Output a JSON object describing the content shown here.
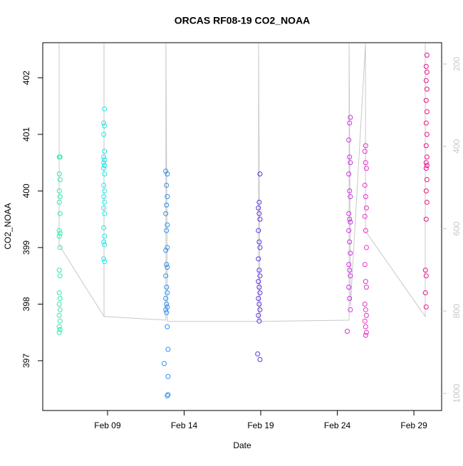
{
  "chart_data": {
    "type": "scatter",
    "title": "ORCAS RF08-19 CO2_NOAA",
    "x_label": "Date",
    "y_label": "CO2_NOAA",
    "xlim": [
      4.77,
      30.81
    ],
    "ylim": [
      396.12,
      402.62
    ],
    "y2lim": [
      1041.5,
      148.2
    ],
    "xticks": [
      {
        "value": 9,
        "label": "Feb 09"
      },
      {
        "value": 14,
        "label": "Feb 14"
      },
      {
        "value": 19,
        "label": "Feb 19"
      },
      {
        "value": 24,
        "label": "Feb 24"
      },
      {
        "value": 29,
        "label": "Feb 29"
      }
    ],
    "yticks": [
      397,
      398,
      399,
      400,
      401,
      402
    ],
    "y2ticks": [
      200,
      400,
      600,
      800,
      1000
    ],
    "y2_color": "#c8c8c8",
    "series": [
      {
        "type": "line",
        "axis": "y2",
        "color": "#c8c8c8",
        "x": [
          5.84,
          5.84,
          8.77,
          8.77,
          8.77,
          12.81,
          12.81,
          12.91,
          18.86,
          18.86,
          18.95,
          24.77,
          24.77,
          24.86,
          25.84,
          25.84,
          29.74,
          29.74
        ],
        "values": [
          150,
          640,
          813,
          150,
          813,
          822,
          150,
          825,
          825,
          150,
          825,
          822,
          150,
          787,
          150,
          606,
          813,
          150
        ]
      },
      {
        "color": "#2ee8b0",
        "x": [
          5.85,
          5.9,
          5.85,
          5.9,
          5.85,
          5.9,
          5.85,
          5.9,
          5.85,
          5.9,
          5.85,
          5.9,
          5.85,
          5.9,
          5.85,
          5.9,
          5.85,
          5.9,
          5.85,
          5.9,
          5.85,
          5.9,
          5.85
        ],
        "values": [
          400.6,
          400.6,
          400.3,
          400.2,
          400.0,
          399.9,
          399.8,
          399.6,
          399.3,
          399.25,
          399.2,
          399.0,
          398.6,
          398.5,
          398.2,
          398.1,
          398.0,
          397.9,
          397.8,
          397.7,
          397.6,
          397.55,
          397.5
        ]
      },
      {
        "color": "#1ee8e8",
        "x": [
          8.8,
          8.75,
          8.8,
          8.75,
          8.8,
          8.75,
          8.8,
          8.75,
          8.8,
          8.75,
          8.8,
          8.75,
          8.8,
          8.75,
          8.8,
          8.75,
          8.8,
          8.75,
          8.8,
          8.75,
          8.8,
          8.75,
          8.8
        ],
        "values": [
          401.45,
          401.2,
          401.15,
          401.0,
          400.7,
          400.6,
          400.55,
          400.5,
          400.45,
          400.4,
          400.3,
          400.1,
          400.0,
          399.9,
          399.8,
          399.7,
          399.6,
          399.35,
          399.2,
          399.1,
          399.05,
          398.8,
          398.75
        ]
      },
      {
        "color": "#2e8ff0",
        "x": [
          12.8,
          12.9,
          12.85,
          12.9,
          12.85,
          12.8,
          12.9,
          12.85,
          12.9,
          12.8,
          12.85,
          12.9,
          12.8,
          12.85,
          12.9,
          12.8,
          12.85,
          12.9,
          12.8,
          12.85,
          12.9,
          12.95,
          12.7,
          12.95,
          12.95,
          12.9
        ],
        "values": [
          400.35,
          400.3,
          400.1,
          399.9,
          399.75,
          399.6,
          399.4,
          399.3,
          399.0,
          398.95,
          398.7,
          398.65,
          398.5,
          398.3,
          398.2,
          398.1,
          398.0,
          397.95,
          397.9,
          397.85,
          397.6,
          397.2,
          396.95,
          396.72,
          396.4,
          396.38
        ]
      },
      {
        "color": "#5a2ee8",
        "x": [
          18.95,
          18.9,
          18.85,
          18.9,
          18.95,
          18.85,
          18.9,
          18.95,
          18.85,
          18.9,
          18.95,
          18.85,
          18.9,
          18.95,
          18.85,
          18.9,
          18.95,
          18.85,
          18.9,
          18.8,
          18.95
        ],
        "values": [
          400.3,
          399.8,
          399.7,
          399.6,
          399.5,
          399.3,
          399.1,
          399.0,
          398.8,
          398.6,
          398.5,
          398.4,
          398.3,
          398.2,
          398.1,
          398.0,
          397.9,
          397.8,
          397.7,
          397.12,
          397.02
        ]
      },
      {
        "color": "#d02ee8",
        "x": [
          24.85,
          24.8,
          24.75,
          24.8,
          24.85,
          24.75,
          24.8,
          24.85,
          24.75,
          24.8,
          24.85,
          24.75,
          24.8,
          24.85,
          24.75,
          24.8,
          24.85,
          24.75,
          24.8,
          24.85,
          24.65
        ],
        "values": [
          401.3,
          401.2,
          400.9,
          400.6,
          400.5,
          400.3,
          400.0,
          399.9,
          399.6,
          399.5,
          399.45,
          399.3,
          399.1,
          398.9,
          398.7,
          398.6,
          398.5,
          398.3,
          398.1,
          397.9,
          397.52
        ]
      },
      {
        "color": "#e82ec8",
        "x": [
          25.85,
          25.8,
          25.85,
          25.9,
          25.8,
          25.85,
          25.9,
          25.8,
          25.85,
          25.9,
          25.8,
          25.85,
          25.9,
          25.8,
          25.85,
          25.9,
          25.8,
          25.85,
          25.9,
          25.85
        ],
        "values": [
          400.8,
          400.7,
          400.5,
          400.4,
          400.1,
          399.9,
          399.7,
          399.55,
          399.3,
          399.0,
          398.7,
          398.4,
          398.3,
          398.0,
          397.9,
          397.8,
          397.7,
          397.6,
          397.5,
          397.45
        ]
      },
      {
        "color": "#e8108c",
        "x": [
          29.85,
          29.8,
          29.85,
          29.8,
          29.85,
          29.8,
          29.85,
          29.8,
          29.85,
          29.8,
          29.85,
          29.8,
          29.85,
          29.8,
          29.85,
          29.8,
          29.85,
          29.8,
          29.75,
          29.8,
          29.75,
          29.8
        ],
        "values": [
          402.4,
          402.2,
          402.1,
          401.95,
          401.8,
          401.6,
          401.4,
          401.2,
          401.0,
          400.8,
          400.6,
          400.5,
          400.45,
          400.4,
          400.2,
          400.0,
          399.8,
          399.5,
          398.6,
          398.5,
          398.2,
          397.95
        ]
      }
    ]
  }
}
